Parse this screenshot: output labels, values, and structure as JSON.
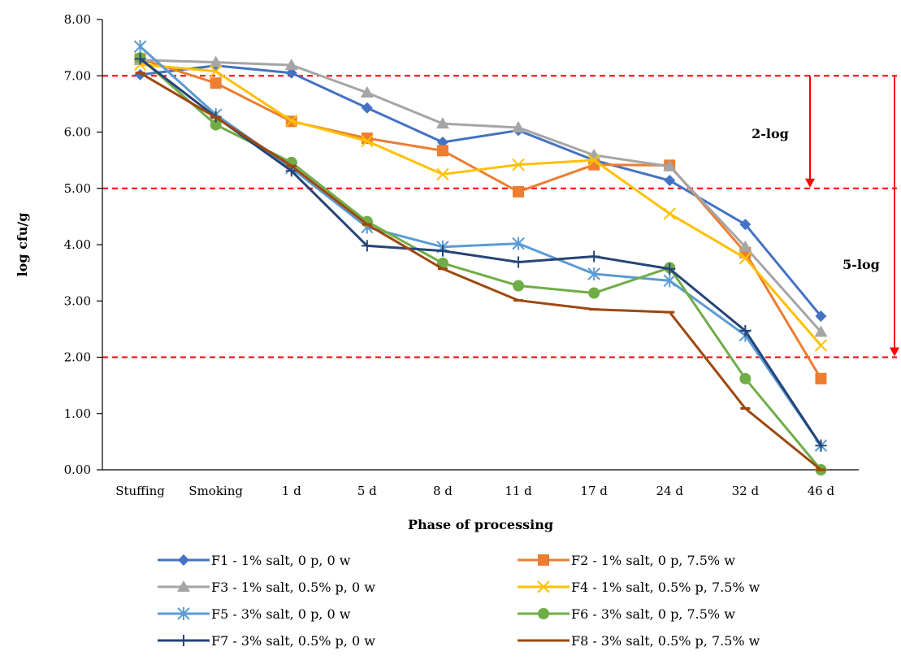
{
  "chart_data": {
    "type": "line",
    "xlabel": "Phase of processing",
    "ylabel": "log cfu/g",
    "categories": [
      "Stuffing",
      "Smoking",
      "1 d",
      "5 d",
      "8 d",
      "11 d",
      "17 d",
      "24 d",
      "32 d",
      "46 d"
    ],
    "ylim": [
      0,
      8
    ],
    "yticks": [
      "0.00",
      "1.00",
      "2.00",
      "3.00",
      "4.00",
      "5.00",
      "6.00",
      "7.00",
      "8.00"
    ],
    "grid": false,
    "legend_position": "bottom",
    "series": [
      {
        "name": "F1 - 1% salt, 0 p, 0 w",
        "color": "#4472C4",
        "marker": "diamond",
        "values": [
          7.02,
          7.18,
          7.05,
          6.43,
          5.82,
          6.03,
          5.5,
          5.14,
          4.36,
          2.73
        ]
      },
      {
        "name": "F2 - 1% salt, 0 p, 7.5% w",
        "color": "#ED7D31",
        "marker": "square",
        "values": [
          7.3,
          6.87,
          6.19,
          5.89,
          5.67,
          4.94,
          5.42,
          5.41,
          3.86,
          1.62
        ]
      },
      {
        "name": "F3 - 1% salt, 0.5% p, 0 w",
        "color": "#A5A5A5",
        "marker": "triangle",
        "values": [
          7.28,
          7.24,
          7.19,
          6.7,
          6.15,
          6.08,
          5.59,
          5.39,
          3.96,
          2.45
        ]
      },
      {
        "name": "F4 - 1% salt, 0.5% p, 7.5% w",
        "color": "#FFC000",
        "marker": "x",
        "values": [
          7.2,
          7.08,
          6.2,
          5.84,
          5.25,
          5.42,
          5.5,
          4.55,
          3.76,
          2.21
        ]
      },
      {
        "name": "F5 - 3% salt, 0 p, 0 w",
        "color": "#5B9BD5",
        "marker": "star",
        "values": [
          7.52,
          6.31,
          5.36,
          4.31,
          3.96,
          4.02,
          3.48,
          3.36,
          2.39,
          0.43
        ]
      },
      {
        "name": "F6 - 3% salt, 0 p, 7.5% w",
        "color": "#70AD47",
        "marker": "circle",
        "values": [
          7.32,
          6.13,
          5.46,
          4.41,
          3.67,
          3.27,
          3.14,
          3.59,
          1.62,
          0.0
        ]
      },
      {
        "name": "F7 - 3% salt, 0.5% p, 0 w",
        "color": "#264478",
        "marker": "plus",
        "values": [
          7.3,
          6.27,
          5.31,
          3.98,
          3.89,
          3.69,
          3.79,
          3.57,
          2.47,
          0.43
        ]
      },
      {
        "name": "F8 - 3% salt, 0.5% p, 7.5% w",
        "color": "#9E480E",
        "marker": "dash",
        "values": [
          7.05,
          6.26,
          5.4,
          4.36,
          3.57,
          3.01,
          2.85,
          2.8,
          1.09,
          0.0
        ]
      }
    ],
    "reference_lines": [
      7.0,
      5.0,
      2.0
    ],
    "reference_color": "#FF0000",
    "annotations": [
      "2-log",
      "5-log"
    ]
  }
}
